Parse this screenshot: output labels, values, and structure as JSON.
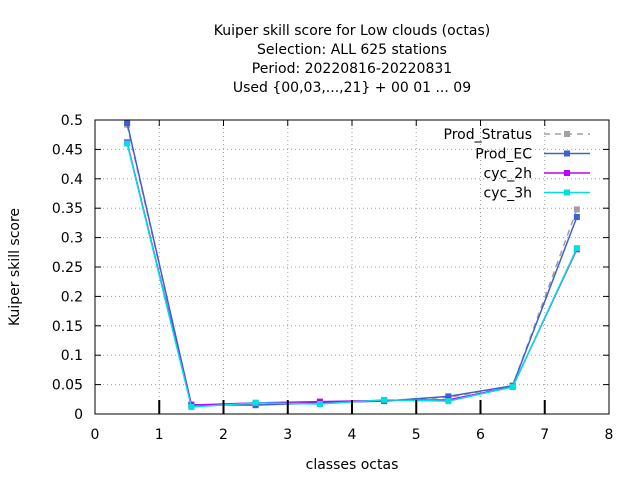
{
  "chart_data": {
    "type": "line",
    "title_lines": [
      "Kuiper skill score  for Low clouds (octas)",
      "Selection: ALL     625 stations",
      "Period: 20220816-20220831",
      "Used {00,03,...,21} + 00 01 ... 09"
    ],
    "xlabel": "classes octas",
    "ylabel": "Kuiper skill score",
    "xlim": [
      0,
      8
    ],
    "ylim": [
      0,
      0.5
    ],
    "xticks": [
      "0",
      "1",
      "2",
      "3",
      "4",
      "5",
      "6",
      "7",
      "8"
    ],
    "yticks": [
      "0",
      "0.05",
      "0.1",
      "0.15",
      "0.2",
      "0.25",
      "0.3",
      "0.35",
      "0.4",
      "0.45",
      "0.5"
    ],
    "grid": true,
    "legend_position": "top-right",
    "x": [
      0.5,
      1.5,
      2.5,
      3.5,
      4.5,
      5.5,
      6.5,
      7.5
    ],
    "series": [
      {
        "name": "Prod_Stratus",
        "color": "#a0a0a0",
        "dashed": true,
        "values": [
          0.492,
          0.015,
          0.016,
          0.019,
          0.023,
          0.028,
          0.048,
          0.348
        ]
      },
      {
        "name": "Prod_EC",
        "color": "#4060d0",
        "dashed": false,
        "values": [
          0.495,
          0.016,
          0.015,
          0.019,
          0.022,
          0.03,
          0.048,
          0.335
        ]
      },
      {
        "name": "cyc_2h",
        "color": "#c000ff",
        "dashed": false,
        "values": [
          0.462,
          0.015,
          0.019,
          0.021,
          0.023,
          0.024,
          0.046,
          0.28
        ]
      },
      {
        "name": "cyc_3h",
        "color": "#00e0e0",
        "dashed": false,
        "values": [
          0.46,
          0.012,
          0.019,
          0.017,
          0.024,
          0.022,
          0.046,
          0.282
        ]
      }
    ],
    "bottom_tick_marks_x": [
      1,
      2,
      3,
      4,
      5,
      6,
      7
    ]
  }
}
